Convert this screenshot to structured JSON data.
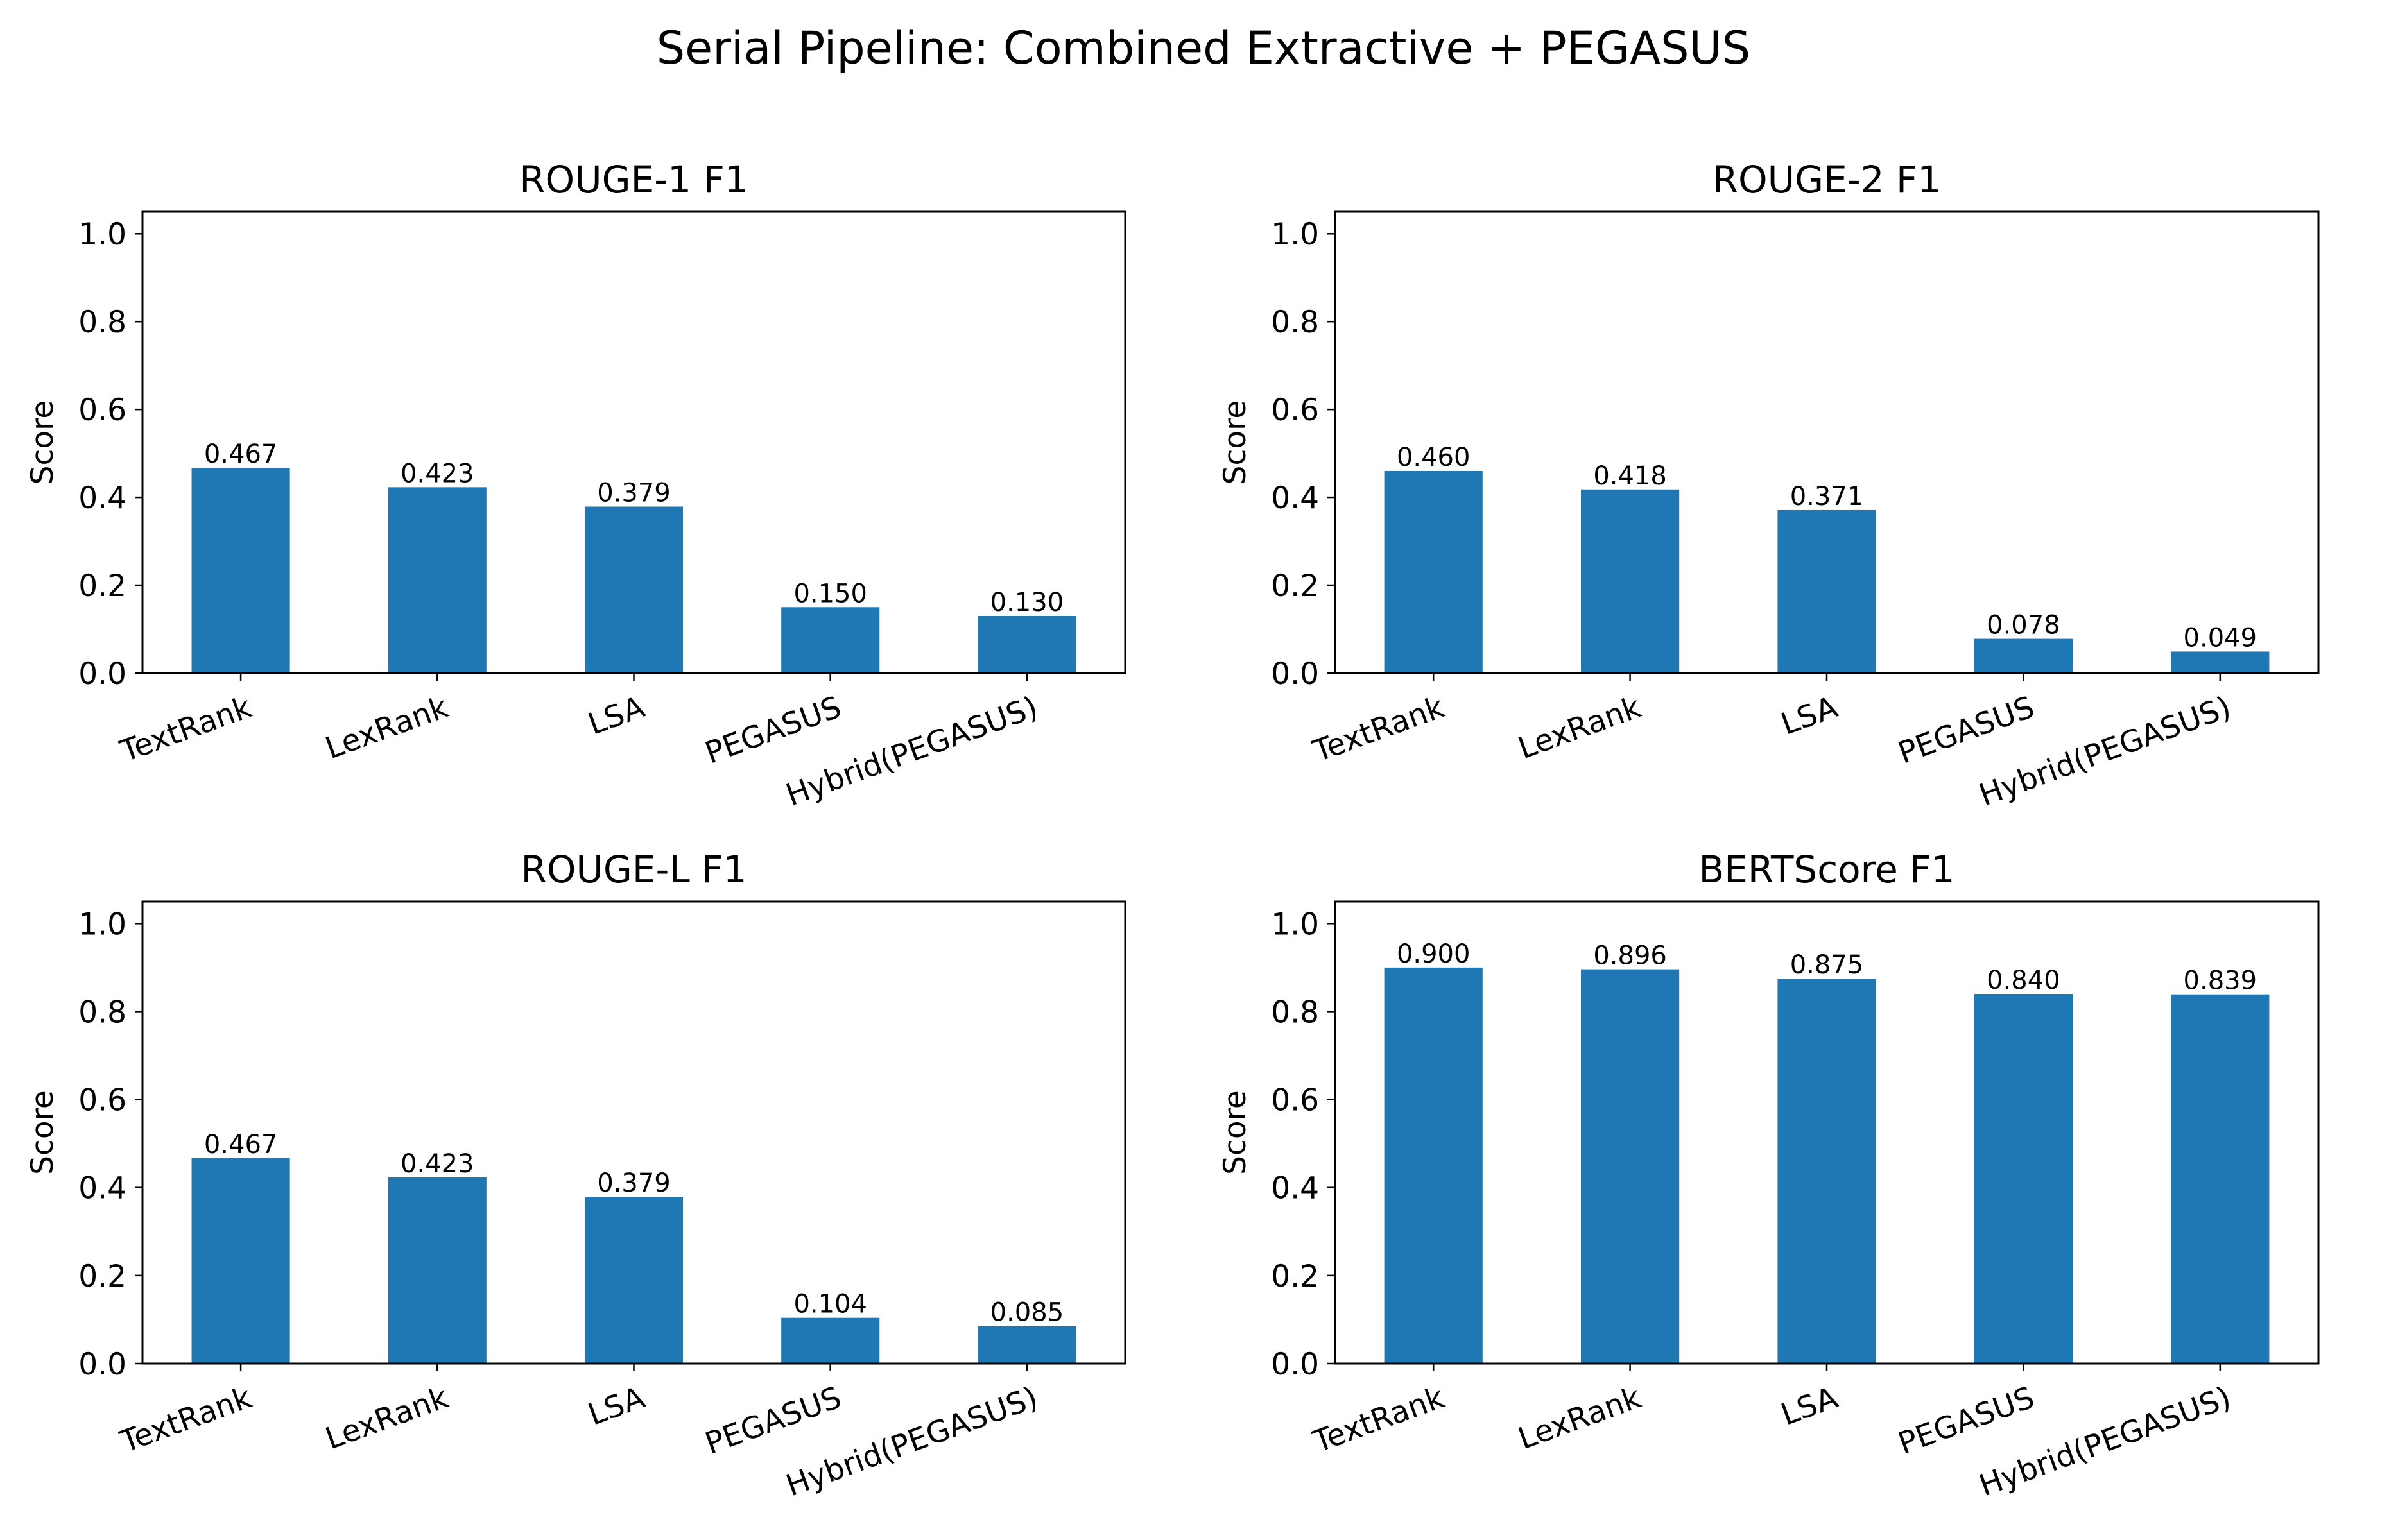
{
  "figure": {
    "title": "Serial Pipeline: Combined Extractive + PEGASUS",
    "bar_color": "#1f77b4"
  },
  "chart_data": [
    {
      "type": "bar",
      "title": "ROUGE-1 F1",
      "xlabel": "",
      "ylabel": "Score",
      "categories": [
        "TextRank",
        "LexRank",
        "LSA",
        "PEGASUS",
        "Hybrid(PEGASUS)"
      ],
      "values": [
        0.467,
        0.423,
        0.379,
        0.15,
        0.13
      ],
      "value_labels": [
        "0.467",
        "0.423",
        "0.379",
        "0.150",
        "0.130"
      ],
      "ylim": [
        0,
        1.05
      ],
      "yticks": [
        "0.0",
        "0.2",
        "0.4",
        "0.6",
        "0.8",
        "1.0"
      ],
      "grid": false,
      "legend": "none"
    },
    {
      "type": "bar",
      "title": "ROUGE-2 F1",
      "xlabel": "",
      "ylabel": "Score",
      "categories": [
        "TextRank",
        "LexRank",
        "LSA",
        "PEGASUS",
        "Hybrid(PEGASUS)"
      ],
      "values": [
        0.46,
        0.418,
        0.371,
        0.078,
        0.049
      ],
      "value_labels": [
        "0.460",
        "0.418",
        "0.371",
        "0.078",
        "0.049"
      ],
      "ylim": [
        0,
        1.05
      ],
      "yticks": [
        "0.0",
        "0.2",
        "0.4",
        "0.6",
        "0.8",
        "1.0"
      ],
      "grid": false,
      "legend": "none"
    },
    {
      "type": "bar",
      "title": "ROUGE-L F1",
      "xlabel": "",
      "ylabel": "Score",
      "categories": [
        "TextRank",
        "LexRank",
        "LSA",
        "PEGASUS",
        "Hybrid(PEGASUS)"
      ],
      "values": [
        0.467,
        0.423,
        0.379,
        0.104,
        0.085
      ],
      "value_labels": [
        "0.467",
        "0.423",
        "0.379",
        "0.104",
        "0.085"
      ],
      "ylim": [
        0,
        1.05
      ],
      "yticks": [
        "0.0",
        "0.2",
        "0.4",
        "0.6",
        "0.8",
        "1.0"
      ],
      "grid": false,
      "legend": "none"
    },
    {
      "type": "bar",
      "title": "BERTScore F1",
      "xlabel": "",
      "ylabel": "Score",
      "categories": [
        "TextRank",
        "LexRank",
        "LSA",
        "PEGASUS",
        "Hybrid(PEGASUS)"
      ],
      "values": [
        0.9,
        0.896,
        0.875,
        0.84,
        0.839
      ],
      "value_labels": [
        "0.900",
        "0.896",
        "0.875",
        "0.840",
        "0.839"
      ],
      "ylim": [
        0,
        1.05
      ],
      "yticks": [
        "0.0",
        "0.2",
        "0.4",
        "0.6",
        "0.8",
        "1.0"
      ],
      "grid": false,
      "legend": "none"
    }
  ]
}
